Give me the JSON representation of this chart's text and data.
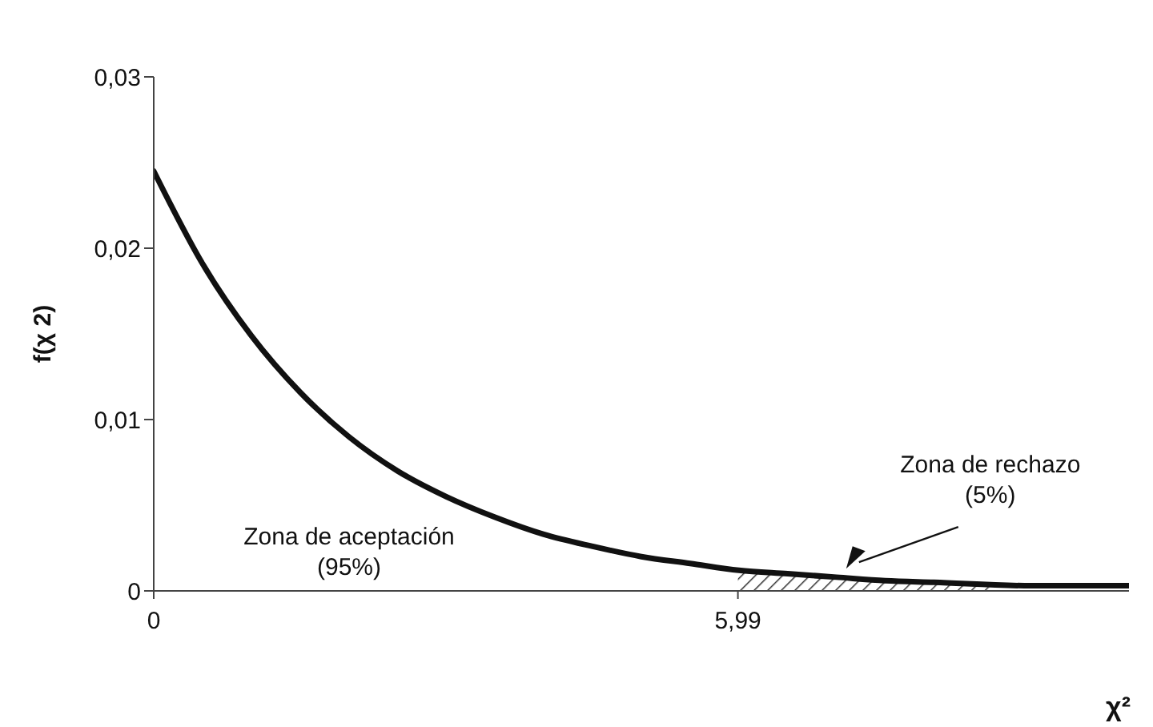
{
  "chart_data": {
    "type": "line",
    "xlabel": "χ²",
    "ylabel": "f(χ 2)",
    "xlim": [
      0,
      10
    ],
    "xticks": [
      0,
      {
        "value": 5.99,
        "label": "5,99"
      }
    ],
    "ylim": [
      0,
      0.03
    ],
    "yticks": [
      0,
      {
        "value": 0.01,
        "label": "0,01"
      },
      {
        "value": 0.02,
        "label": "0,02"
      },
      {
        "value": 0.03,
        "label": "0,03"
      }
    ],
    "grid": false,
    "legend": false,
    "marker": "none",
    "line_style": "solid",
    "series": [
      {
        "color": "#111111",
        "x": [
          0,
          0.5,
          1,
          1.5,
          2,
          2.5,
          3,
          3.5,
          4,
          4.5,
          5,
          5.5,
          6,
          6.5,
          7,
          7.5,
          8,
          9,
          10
        ],
        "values": [
          0.0245,
          0.0191,
          0.0149,
          0.0116,
          0.009,
          0.007,
          0.0055,
          0.0043,
          0.0033,
          0.0026,
          0.002,
          0.0016,
          0.0012,
          0.001,
          0.0008,
          0.0006,
          0.0005,
          0.0003,
          0.0003
        ]
      },
      {
        "type": "area",
        "color": "#333333",
        "x": [
          5.99,
          6.5,
          7,
          7.5,
          8,
          8.6
        ],
        "values": [
          0.0012,
          0.001,
          0.0008,
          0.0006,
          0.0005,
          0.0004
        ]
      }
    ],
    "annotations": [
      "Zona de aceptación\n(95%)",
      {
        "text": "Zona de rechazo\n(5%)",
        "x": 7.1,
        "y": 0.0013
      }
    ]
  }
}
